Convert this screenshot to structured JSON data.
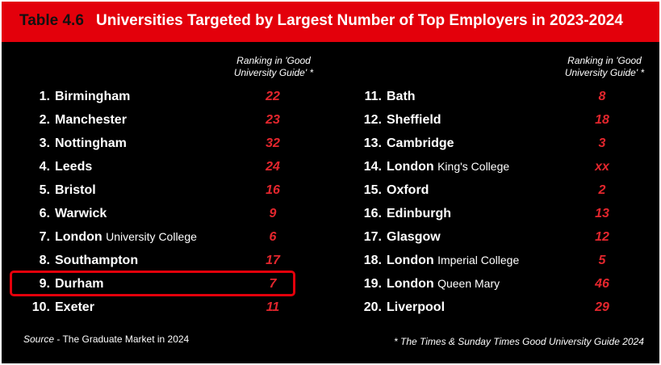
{
  "title": {
    "number": "Table 4.6",
    "text": "Universities Targeted by Largest Number of Top Employers in 2023-2024"
  },
  "column_header": {
    "line1": "Ranking in 'Good",
    "line2": "University Guide' *"
  },
  "left_rows": [
    {
      "num": "1.",
      "name": "Birmingham",
      "sub": "",
      "rank": "22"
    },
    {
      "num": "2.",
      "name": "Manchester",
      "sub": "",
      "rank": "23"
    },
    {
      "num": "3.",
      "name": "Nottingham",
      "sub": "",
      "rank": "32"
    },
    {
      "num": "4.",
      "name": "Leeds",
      "sub": "",
      "rank": "24"
    },
    {
      "num": "5.",
      "name": "Bristol",
      "sub": "",
      "rank": "16"
    },
    {
      "num": "6.",
      "name": "Warwick",
      "sub": "",
      "rank": "9"
    },
    {
      "num": "7.",
      "name": "London",
      "sub": "University College",
      "rank": "6"
    },
    {
      "num": "8.",
      "name": "Southampton",
      "sub": "",
      "rank": "17"
    },
    {
      "num": "9.",
      "name": "Durham",
      "sub": "",
      "rank": "7"
    },
    {
      "num": "10.",
      "name": "Exeter",
      "sub": "",
      "rank": "11"
    }
  ],
  "right_rows": [
    {
      "num": "11.",
      "name": "Bath",
      "sub": "",
      "rank": "8"
    },
    {
      "num": "12.",
      "name": "Sheffield",
      "sub": "",
      "rank": "18"
    },
    {
      "num": "13.",
      "name": "Cambridge",
      "sub": "",
      "rank": "3"
    },
    {
      "num": "14.",
      "name": "London",
      "sub": "King's College",
      "rank": "xx"
    },
    {
      "num": "15.",
      "name": "Oxford",
      "sub": "",
      "rank": "2"
    },
    {
      "num": "16.",
      "name": "Edinburgh",
      "sub": "",
      "rank": "13"
    },
    {
      "num": "17.",
      "name": "Glasgow",
      "sub": "",
      "rank": "12"
    },
    {
      "num": "18.",
      "name": "London",
      "sub": "Imperial College",
      "rank": "5"
    },
    {
      "num": "19.",
      "name": "London",
      "sub": "Queen Mary",
      "rank": "46"
    },
    {
      "num": "20.",
      "name": "Liverpool",
      "sub": "",
      "rank": "29"
    }
  ],
  "footer": {
    "source_label": "Source",
    "source_text": " - The Graduate Market in 2024",
    "note": "* The Times & Sunday Times Good University Guide 2024"
  },
  "colors": {
    "background": "#000000",
    "title_bar": "#e3000b",
    "rank_text": "#e3262d",
    "highlight_border": "#e3000b"
  }
}
